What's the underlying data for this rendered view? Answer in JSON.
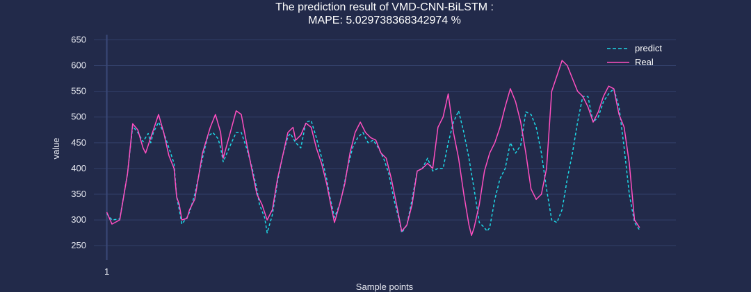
{
  "chart_data": {
    "type": "line",
    "title_line1": "The prediction result of VMD-CNN-BiLSTM :",
    "title_line2": "MAPE: 5.029738368342974 %",
    "xlabel": "Sample points",
    "ylabel": "value",
    "x_ticks": [
      "1"
    ],
    "y_ticks": [
      250,
      300,
      350,
      400,
      450,
      500,
      550,
      600,
      650
    ],
    "ylim": [
      222,
      660
    ],
    "xlim": [
      -5,
      220
    ],
    "grid": true,
    "legend_position": "top-right",
    "colors": {
      "predict": "#1ed8e6",
      "real": "#ff4fc0"
    },
    "series": [
      {
        "name": "predict",
        "style": "dashed",
        "points": [
          [
            0,
            312
          ],
          [
            2,
            300
          ],
          [
            5,
            302
          ],
          [
            8,
            390
          ],
          [
            10,
            482
          ],
          [
            12,
            470
          ],
          [
            14,
            452
          ],
          [
            16,
            468
          ],
          [
            17,
            450
          ],
          [
            18,
            470
          ],
          [
            20,
            490
          ],
          [
            22,
            470
          ],
          [
            24,
            440
          ],
          [
            26,
            410
          ],
          [
            27,
            345
          ],
          [
            28,
            320
          ],
          [
            29,
            292
          ],
          [
            31,
            305
          ],
          [
            32,
            315
          ],
          [
            34,
            350
          ],
          [
            37,
            420
          ],
          [
            39,
            462
          ],
          [
            41,
            470
          ],
          [
            43,
            458
          ],
          [
            44,
            440
          ],
          [
            45,
            413
          ],
          [
            48,
            448
          ],
          [
            50,
            470
          ],
          [
            52,
            470
          ],
          [
            54,
            440
          ],
          [
            56,
            405
          ],
          [
            58,
            360
          ],
          [
            59,
            330
          ],
          [
            61,
            305
          ],
          [
            62,
            275
          ],
          [
            64,
            310
          ],
          [
            66,
            375
          ],
          [
            68,
            425
          ],
          [
            70,
            462
          ],
          [
            71,
            468
          ],
          [
            73,
            450
          ],
          [
            75,
            440
          ],
          [
            77,
            490
          ],
          [
            79,
            493
          ],
          [
            81,
            460
          ],
          [
            83,
            422
          ],
          [
            85,
            380
          ],
          [
            86,
            350
          ],
          [
            88,
            305
          ],
          [
            90,
            330
          ],
          [
            91,
            350
          ],
          [
            93,
            400
          ],
          [
            95,
            440
          ],
          [
            97,
            460
          ],
          [
            99,
            470
          ],
          [
            101,
            450
          ],
          [
            103,
            455
          ],
          [
            105,
            440
          ],
          [
            107,
            420
          ],
          [
            109,
            390
          ],
          [
            111,
            340
          ],
          [
            113,
            300
          ],
          [
            114,
            275
          ],
          [
            116,
            290
          ],
          [
            118,
            340
          ],
          [
            120,
            395
          ],
          [
            122,
            400
          ],
          [
            124,
            420
          ],
          [
            126,
            395
          ],
          [
            128,
            400
          ],
          [
            130,
            400
          ],
          [
            132,
            450
          ],
          [
            134,
            490
          ],
          [
            136,
            512
          ],
          [
            138,
            470
          ],
          [
            140,
            420
          ],
          [
            142,
            360
          ],
          [
            144,
            295
          ],
          [
            146,
            285
          ],
          [
            147,
            278
          ],
          [
            148,
            285
          ],
          [
            150,
            340
          ],
          [
            152,
            380
          ],
          [
            154,
            400
          ],
          [
            156,
            450
          ],
          [
            158,
            430
          ],
          [
            160,
            445
          ],
          [
            162,
            510
          ],
          [
            164,
            505
          ],
          [
            166,
            480
          ],
          [
            168,
            430
          ],
          [
            170,
            360
          ],
          [
            172,
            300
          ],
          [
            174,
            295
          ],
          [
            176,
            320
          ],
          [
            178,
            380
          ],
          [
            180,
            430
          ],
          [
            182,
            490
          ],
          [
            184,
            540
          ],
          [
            186,
            540
          ],
          [
            188,
            490
          ],
          [
            190,
            500
          ],
          [
            192,
            530
          ],
          [
            194,
            545
          ],
          [
            196,
            555
          ],
          [
            198,
            520
          ],
          [
            200,
            440
          ],
          [
            202,
            350
          ],
          [
            204,
            295
          ],
          [
            206,
            280
          ]
        ]
      },
      {
        "name": "Real",
        "style": "solid",
        "points": [
          [
            0,
            315
          ],
          [
            2,
            292
          ],
          [
            5,
            300
          ],
          [
            8,
            390
          ],
          [
            10,
            487
          ],
          [
            12,
            475
          ],
          [
            14,
            440
          ],
          [
            15,
            430
          ],
          [
            17,
            460
          ],
          [
            18,
            475
          ],
          [
            20,
            505
          ],
          [
            22,
            470
          ],
          [
            24,
            425
          ],
          [
            26,
            400
          ],
          [
            27,
            345
          ],
          [
            28,
            330
          ],
          [
            29,
            300
          ],
          [
            31,
            303
          ],
          [
            32,
            320
          ],
          [
            34,
            340
          ],
          [
            37,
            430
          ],
          [
            40,
            480
          ],
          [
            42,
            505
          ],
          [
            44,
            470
          ],
          [
            45,
            420
          ],
          [
            48,
            475
          ],
          [
            50,
            512
          ],
          [
            52,
            505
          ],
          [
            54,
            450
          ],
          [
            56,
            400
          ],
          [
            58,
            350
          ],
          [
            60,
            330
          ],
          [
            62,
            300
          ],
          [
            64,
            320
          ],
          [
            66,
            380
          ],
          [
            68,
            425
          ],
          [
            70,
            470
          ],
          [
            72,
            480
          ],
          [
            73,
            455
          ],
          [
            75,
            465
          ],
          [
            77,
            488
          ],
          [
            79,
            480
          ],
          [
            81,
            440
          ],
          [
            83,
            410
          ],
          [
            85,
            370
          ],
          [
            87,
            320
          ],
          [
            88,
            295
          ],
          [
            90,
            330
          ],
          [
            92,
            370
          ],
          [
            94,
            430
          ],
          [
            96,
            470
          ],
          [
            98,
            490
          ],
          [
            100,
            470
          ],
          [
            102,
            460
          ],
          [
            104,
            455
          ],
          [
            106,
            430
          ],
          [
            108,
            420
          ],
          [
            110,
            380
          ],
          [
            112,
            330
          ],
          [
            114,
            278
          ],
          [
            116,
            290
          ],
          [
            118,
            330
          ],
          [
            120,
            395
          ],
          [
            122,
            400
          ],
          [
            124,
            410
          ],
          [
            126,
            400
          ],
          [
            128,
            480
          ],
          [
            130,
            500
          ],
          [
            132,
            545
          ],
          [
            134,
            470
          ],
          [
            136,
            420
          ],
          [
            138,
            350
          ],
          [
            140,
            290
          ],
          [
            141,
            270
          ],
          [
            142,
            285
          ],
          [
            144,
            330
          ],
          [
            146,
            395
          ],
          [
            148,
            430
          ],
          [
            150,
            450
          ],
          [
            152,
            480
          ],
          [
            154,
            520
          ],
          [
            156,
            555
          ],
          [
            158,
            530
          ],
          [
            160,
            490
          ],
          [
            162,
            430
          ],
          [
            164,
            360
          ],
          [
            166,
            340
          ],
          [
            168,
            350
          ],
          [
            170,
            400
          ],
          [
            172,
            550
          ],
          [
            174,
            580
          ],
          [
            176,
            610
          ],
          [
            178,
            600
          ],
          [
            180,
            575
          ],
          [
            182,
            550
          ],
          [
            184,
            540
          ],
          [
            186,
            520
          ],
          [
            188,
            490
          ],
          [
            190,
            510
          ],
          [
            192,
            540
          ],
          [
            194,
            560
          ],
          [
            196,
            555
          ],
          [
            198,
            505
          ],
          [
            200,
            480
          ],
          [
            202,
            410
          ],
          [
            204,
            300
          ],
          [
            206,
            285
          ]
        ]
      }
    ]
  }
}
